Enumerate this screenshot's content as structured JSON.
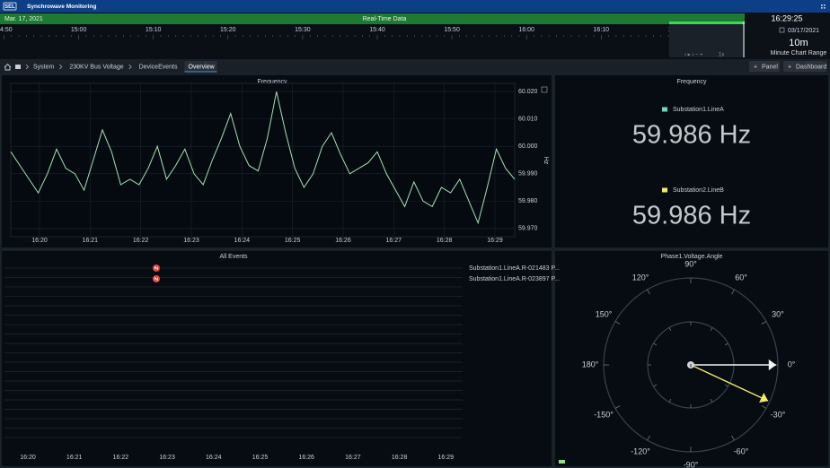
{
  "app": {
    "logo": "SEL",
    "title": "Synchrowave Monitoring"
  },
  "timeline": {
    "date": "Mar. 17, 2021",
    "mode": "Real-Time Data",
    "ticks": [
      "4:50",
      "15:00",
      "15:10",
      "15:20",
      "15:30",
      "15:40",
      "15:50",
      "16:00",
      "16:10",
      "16:20"
    ],
    "zoom": "1x",
    "clock": "16:29:25",
    "clock_date": "03/17/2021",
    "range": "10m",
    "range_label": "Minute Chart Range"
  },
  "breadcrumb": [
    "System",
    "230KV Bus Voltage",
    "DeviceEvents",
    "Overview"
  ],
  "buttons": [
    "Panel",
    "Dashboard"
  ],
  "frequency_chart": {
    "title": "Frequency",
    "y_label": "Hz",
    "color": "#a8e0b4",
    "xticks": [
      "16:20",
      "16:21",
      "16:22",
      "16:23",
      "16:24",
      "16:25",
      "16:26",
      "16:27",
      "16:28",
      "16:29"
    ],
    "ylim": [
      59.967,
      60.023
    ],
    "yticks": [
      {
        "value": 60.02,
        "label": "60.020"
      },
      {
        "value": 60.01,
        "label": "60.010"
      },
      {
        "value": 60.0,
        "label": "60.000"
      },
      {
        "value": 59.99,
        "label": "59.990"
      },
      {
        "value": 59.98,
        "label": "59.980"
      },
      {
        "value": 59.97,
        "label": "59.970"
      }
    ],
    "values": [
      59.998,
      59.993,
      59.988,
      59.983,
      59.99,
      59.999,
      59.992,
      59.99,
      59.984,
      59.995,
      60.006,
      59.998,
      59.986,
      59.988,
      59.986,
      59.992,
      60.0,
      59.988,
      59.993,
      59.999,
      59.99,
      59.986,
      59.995,
      60.003,
      60.012,
      60.0,
      59.993,
      59.991,
      60.003,
      60.02,
      60.005,
      59.992,
      59.985,
      59.99,
      60.0,
      60.005,
      59.997,
      59.99,
      59.992,
      59.994,
      59.998,
      59.99,
      59.984,
      59.978,
      59.987,
      59.98,
      59.978,
      59.985,
      59.983,
      59.988,
      59.98,
      59.972,
      59.985,
      59.999,
      59.992,
      59.988
    ]
  },
  "frequency_readout": {
    "title": "Frequency",
    "items": [
      {
        "name": "Substation1.LineA",
        "color": "#6fd6c0",
        "reading": "59.986 Hz"
      },
      {
        "name": "Substation2.LineB",
        "color": "#f2ea6a",
        "reading": "59.986 Hz"
      }
    ]
  },
  "events": {
    "title": "All Events",
    "xticks": [
      "16:20",
      "16:21",
      "16:22",
      "16:23",
      "16:24",
      "16:25",
      "16:26",
      "16:27",
      "16:28",
      "16:29"
    ],
    "items": [
      {
        "label": "Substation1.LineA.R-021483 P..."
      },
      {
        "label": "Substation1.LineA.R-023897 P..."
      }
    ]
  },
  "phasor": {
    "title": "Phase1.Voltage.Angle",
    "angle_ticks": [
      {
        "value": 90,
        "label": "90°"
      },
      {
        "value": 60,
        "label": "60°"
      },
      {
        "value": 30,
        "label": "30°"
      },
      {
        "value": 0,
        "label": "0°"
      },
      {
        "value": -30,
        "label": "-30°"
      },
      {
        "value": -60,
        "label": "-60°"
      },
      {
        "value": -90,
        "label": "-90°"
      },
      {
        "value": -120,
        "label": "-120°"
      },
      {
        "value": -150,
        "label": "-150°"
      },
      {
        "value": 180,
        "label": "180°"
      },
      {
        "value": 150,
        "label": "150°"
      },
      {
        "value": 120,
        "label": "120°"
      }
    ],
    "series": [
      {
        "color": "#f4f4f4",
        "angle": 0
      },
      {
        "color": "#f2ea6a",
        "angle": -25
      }
    ]
  }
}
